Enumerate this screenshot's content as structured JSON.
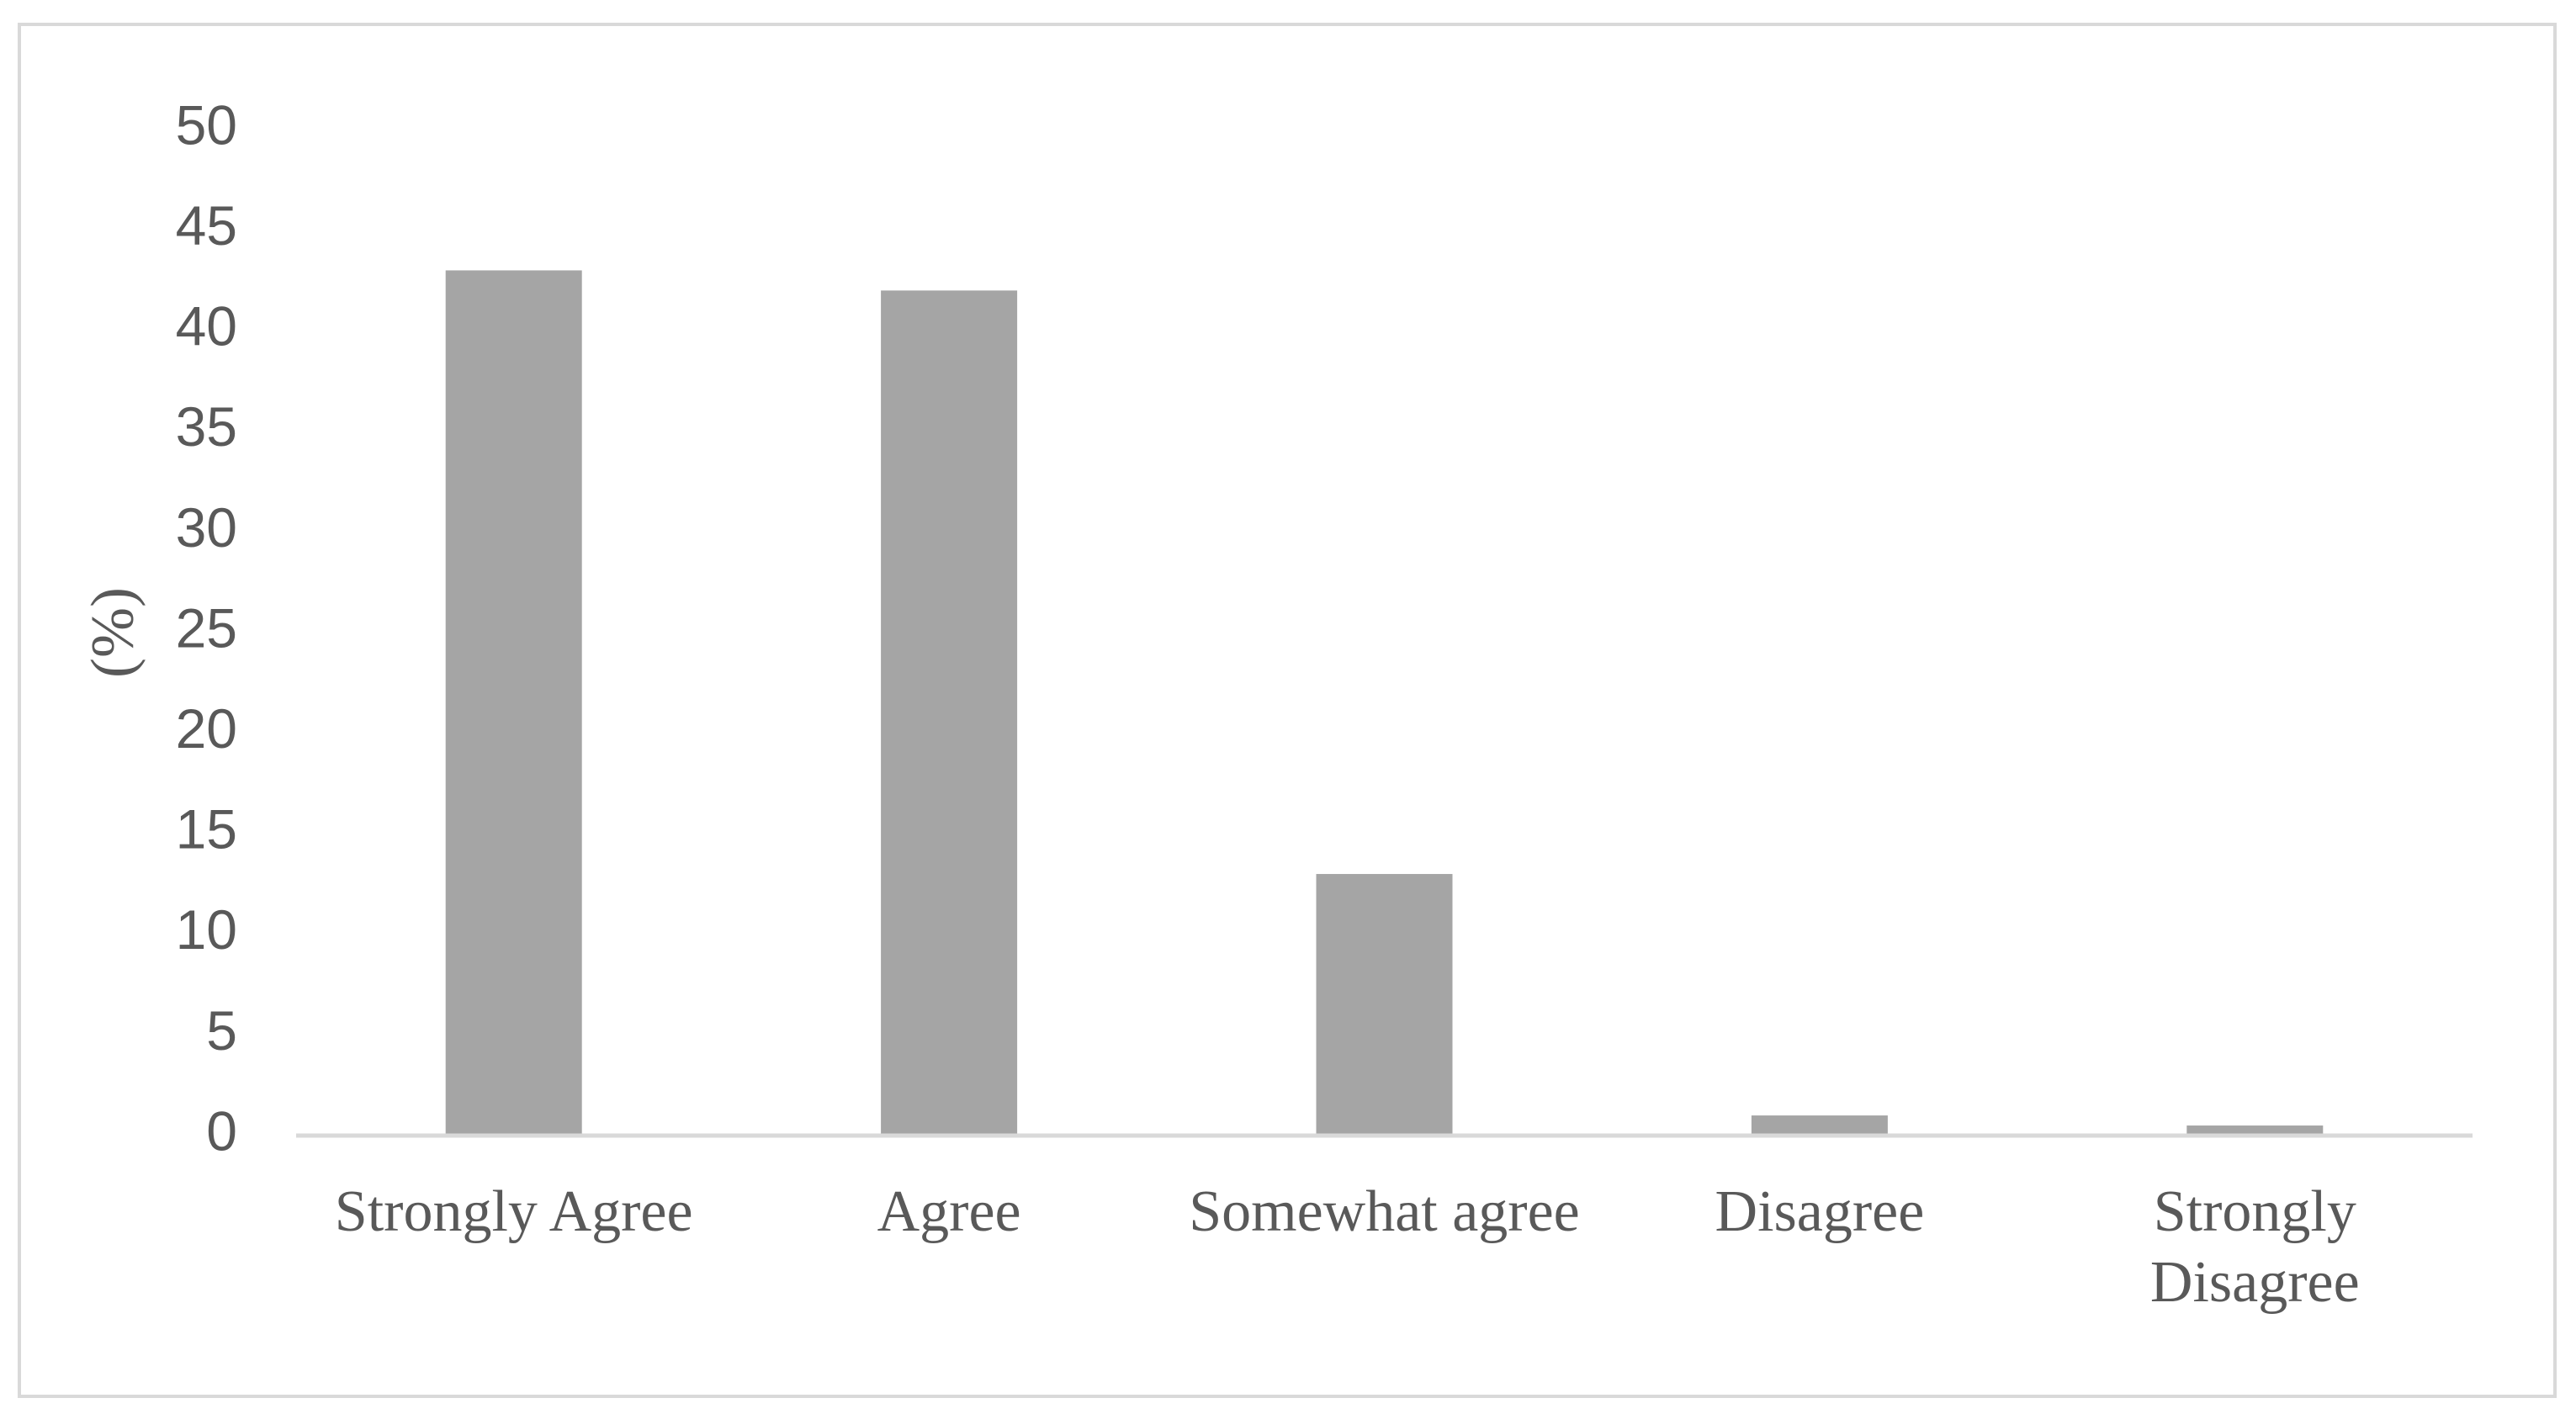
{
  "chart_data": {
    "type": "bar",
    "y_label": "(%)",
    "categories": [
      "Strongly Agree",
      "Agree",
      "Somewhat agree",
      "Disagree",
      "Strongly Disagree"
    ],
    "values": [
      43,
      42,
      13,
      1,
      0.5
    ],
    "color": "#a5a5a5",
    "ylim": [
      0,
      50
    ],
    "yticks": [
      0,
      5,
      10,
      15,
      20,
      25,
      30,
      35,
      40,
      45,
      50
    ],
    "grid": false
  }
}
